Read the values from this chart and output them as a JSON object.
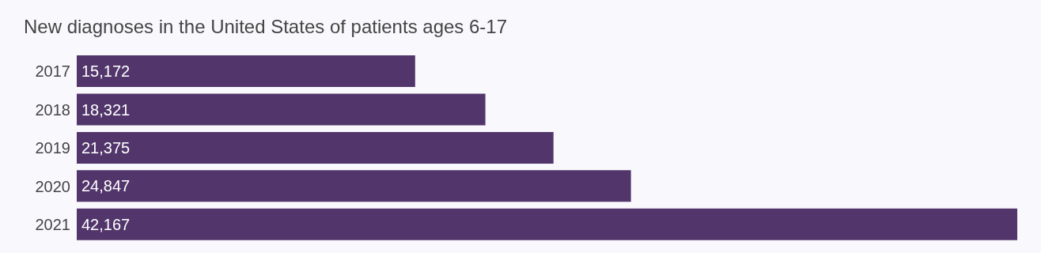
{
  "chart_data": {
    "type": "bar",
    "orientation": "horizontal",
    "title": "New diagnoses in the United States of patients ages 6-17",
    "categories": [
      "2017",
      "2018",
      "2019",
      "2020",
      "2021"
    ],
    "values": [
      15172,
      18321,
      21375,
      24847,
      42167
    ],
    "value_labels": [
      "15,172",
      "18,321",
      "21,375",
      "24,847",
      "42,167"
    ],
    "color": "#52366b",
    "grid": false,
    "legend": false
  }
}
